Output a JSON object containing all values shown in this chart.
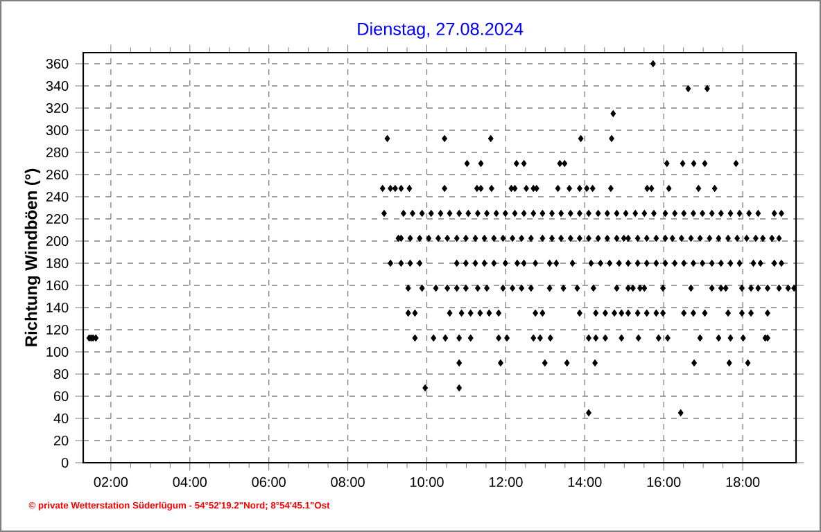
{
  "chart_data": {
    "type": "scatter",
    "title": "Dienstag, 27.08.2024",
    "ylabel": "Richtung Windböen  (°)",
    "annotations": [
      "© private Wetterstation Süderlügum - 54°52'19.2\"Nord; 8°54'45.1\"Ost"
    ],
    "xlim": [
      1.3,
      19.35
    ],
    "ylim": [
      0,
      370
    ],
    "xticks": [
      {
        "value": 2,
        "label": "02:00"
      },
      {
        "value": 4,
        "label": "04:00"
      },
      {
        "value": 6,
        "label": "06:00"
      },
      {
        "value": 8,
        "label": "08:00"
      },
      {
        "value": 10,
        "label": "10:00"
      },
      {
        "value": 12,
        "label": "12:00"
      },
      {
        "value": 14,
        "label": "14:00"
      },
      {
        "value": 16,
        "label": "16:00"
      },
      {
        "value": 18,
        "label": "18:00"
      }
    ],
    "yticks": [
      0,
      20,
      40,
      60,
      80,
      100,
      120,
      140,
      160,
      180,
      200,
      220,
      240,
      260,
      280,
      300,
      320,
      340,
      360
    ],
    "grid": true,
    "marker": "diamond",
    "series": [
      {
        "color": "#000000",
        "x": [
          15.73,
          16.62,
          17.1,
          14.72,
          9.0,
          10.45,
          11.62,
          13.9,
          14.68,
          11.02,
          11.37,
          12.27,
          12.46,
          13.37,
          13.49,
          16.08,
          16.48,
          16.76,
          17.04,
          17.83,
          8.88,
          9.08,
          9.2,
          9.35,
          9.56,
          10.45,
          11.27,
          11.37,
          11.64,
          12.14,
          12.23,
          12.52,
          12.7,
          12.78,
          13.32,
          13.61,
          13.87,
          14.05,
          14.2,
          14.66,
          15.58,
          15.69,
          16.13,
          16.88,
          17.29,
          8.92,
          9.41,
          9.64,
          9.88,
          10.11,
          10.35,
          10.58,
          10.82,
          11.05,
          11.29,
          11.52,
          11.76,
          11.99,
          12.23,
          12.46,
          12.7,
          12.93,
          13.17,
          13.4,
          13.64,
          13.87,
          14.1,
          14.34,
          14.57,
          14.81,
          15.04,
          15.28,
          15.51,
          15.75,
          16.04,
          16.28,
          16.51,
          16.75,
          16.98,
          17.22,
          17.45,
          17.69,
          17.92,
          18.16,
          18.39,
          18.8,
          18.98,
          9.28,
          9.35,
          9.58,
          9.82,
          10.05,
          10.29,
          10.52,
          10.76,
          10.99,
          11.23,
          11.46,
          11.7,
          11.93,
          12.17,
          12.4,
          12.64,
          12.93,
          13.17,
          13.4,
          13.64,
          13.87,
          14.1,
          14.34,
          14.57,
          14.81,
          14.99,
          15.1,
          15.34,
          15.57,
          15.81,
          16.04,
          16.22,
          16.45,
          16.69,
          16.92,
          17.16,
          17.39,
          17.63,
          17.86,
          18.1,
          18.33,
          18.51,
          18.74,
          18.92,
          9.08,
          9.35,
          9.58,
          9.82,
          10.76,
          10.99,
          11.23,
          11.46,
          11.7,
          11.99,
          12.29,
          12.46,
          12.75,
          13.11,
          13.28,
          13.69,
          14.16,
          14.4,
          14.63,
          14.87,
          15.1,
          15.34,
          15.57,
          15.81,
          16.04,
          16.28,
          16.51,
          16.75,
          16.98,
          17.22,
          17.45,
          17.69,
          17.92,
          18.27,
          18.45,
          18.8,
          18.98,
          9.53,
          9.88,
          10.23,
          10.52,
          10.76,
          10.99,
          11.29,
          11.52,
          11.93,
          12.17,
          12.4,
          12.64,
          13.11,
          13.46,
          13.81,
          14.22,
          14.81,
          15.1,
          15.22,
          15.4,
          15.51,
          15.98,
          16.69,
          17.22,
          17.45,
          17.57,
          17.98,
          18.21,
          18.39,
          18.63,
          18.92,
          19.15,
          19.3,
          9.53,
          9.7,
          10.58,
          10.88,
          11.11,
          11.35,
          11.58,
          11.82,
          12.75,
          12.93,
          13.87,
          14.28,
          14.52,
          14.75,
          14.93,
          15.1,
          15.34,
          15.57,
          15.81,
          15.98,
          16.51,
          16.75,
          17.04,
          17.63,
          17.98,
          18.21,
          18.63,
          1.45,
          1.5,
          1.55,
          1.62,
          9.7,
          10.17,
          10.47,
          10.82,
          11.11,
          11.82,
          12.03,
          12.7,
          12.87,
          13.13,
          14.1,
          14.28,
          14.52,
          14.93,
          15.36,
          15.87,
          16.1,
          16.92,
          17.39,
          17.69,
          18.01,
          18.57,
          18.63,
          10.82,
          11.87,
          12.99,
          13.55,
          14.26,
          16.77,
          17.66,
          18.13,
          9.96,
          10.82,
          14.1,
          16.43
        ],
        "values": [
          360,
          337.5,
          337.5,
          315,
          292.5,
          292.5,
          292.5,
          292.5,
          292.5,
          270,
          270,
          270,
          270,
          270,
          270,
          270,
          270,
          270,
          270,
          270,
          247.5,
          247.5,
          247.5,
          247.5,
          247.5,
          247.5,
          247.5,
          247.5,
          247.5,
          247.5,
          247.5,
          247.5,
          247.5,
          247.5,
          247.5,
          247.5,
          247.5,
          247.5,
          247.5,
          247.5,
          247.5,
          247.5,
          247.5,
          247.5,
          247.5,
          225,
          225,
          225,
          225,
          225,
          225,
          225,
          225,
          225,
          225,
          225,
          225,
          225,
          225,
          225,
          225,
          225,
          225,
          225,
          225,
          225,
          225,
          225,
          225,
          225,
          225,
          225,
          225,
          225,
          225,
          225,
          225,
          225,
          225,
          225,
          225,
          225,
          225,
          225,
          225,
          225,
          225,
          202.5,
          202.5,
          202.5,
          202.5,
          202.5,
          202.5,
          202.5,
          202.5,
          202.5,
          202.5,
          202.5,
          202.5,
          202.5,
          202.5,
          202.5,
          202.5,
          202.5,
          202.5,
          202.5,
          202.5,
          202.5,
          202.5,
          202.5,
          202.5,
          202.5,
          202.5,
          202.5,
          202.5,
          202.5,
          202.5,
          202.5,
          202.5,
          202.5,
          202.5,
          202.5,
          202.5,
          202.5,
          202.5,
          202.5,
          202.5,
          202.5,
          202.5,
          202.5,
          202.5,
          180,
          180,
          180,
          180,
          180,
          180,
          180,
          180,
          180,
          180,
          180,
          180,
          180,
          180,
          180,
          180,
          180,
          180,
          180,
          180,
          180,
          180,
          180,
          180,
          180,
          180,
          180,
          180,
          180,
          180,
          180,
          180,
          180,
          180,
          180,
          180,
          180,
          157.5,
          157.5,
          157.5,
          157.5,
          157.5,
          157.5,
          157.5,
          157.5,
          157.5,
          157.5,
          157.5,
          157.5,
          157.5,
          157.5,
          157.5,
          157.5,
          157.5,
          157.5,
          157.5,
          157.5,
          157.5,
          157.5,
          157.5,
          157.5,
          157.5,
          157.5,
          157.5,
          157.5,
          157.5,
          157.5,
          157.5,
          157.5,
          157.5,
          135,
          135,
          135,
          135,
          135,
          135,
          135,
          135,
          135,
          135,
          135,
          135,
          135,
          135,
          135,
          135,
          135,
          135,
          135,
          135,
          135,
          135,
          135,
          135,
          135,
          135,
          135,
          112.5,
          112.5,
          112.5,
          112.5,
          112.5,
          112.5,
          112.5,
          112.5,
          112.5,
          112.5,
          112.5,
          112.5,
          112.5,
          112.5,
          112.5,
          112.5,
          112.5,
          112.5,
          112.5,
          112.5,
          112.5,
          112.5,
          112.5,
          112.5,
          112.5,
          112.5,
          112.5,
          90,
          90,
          90,
          90,
          90,
          90,
          90,
          90,
          67.5,
          67.5,
          45,
          45
        ]
      }
    ]
  }
}
